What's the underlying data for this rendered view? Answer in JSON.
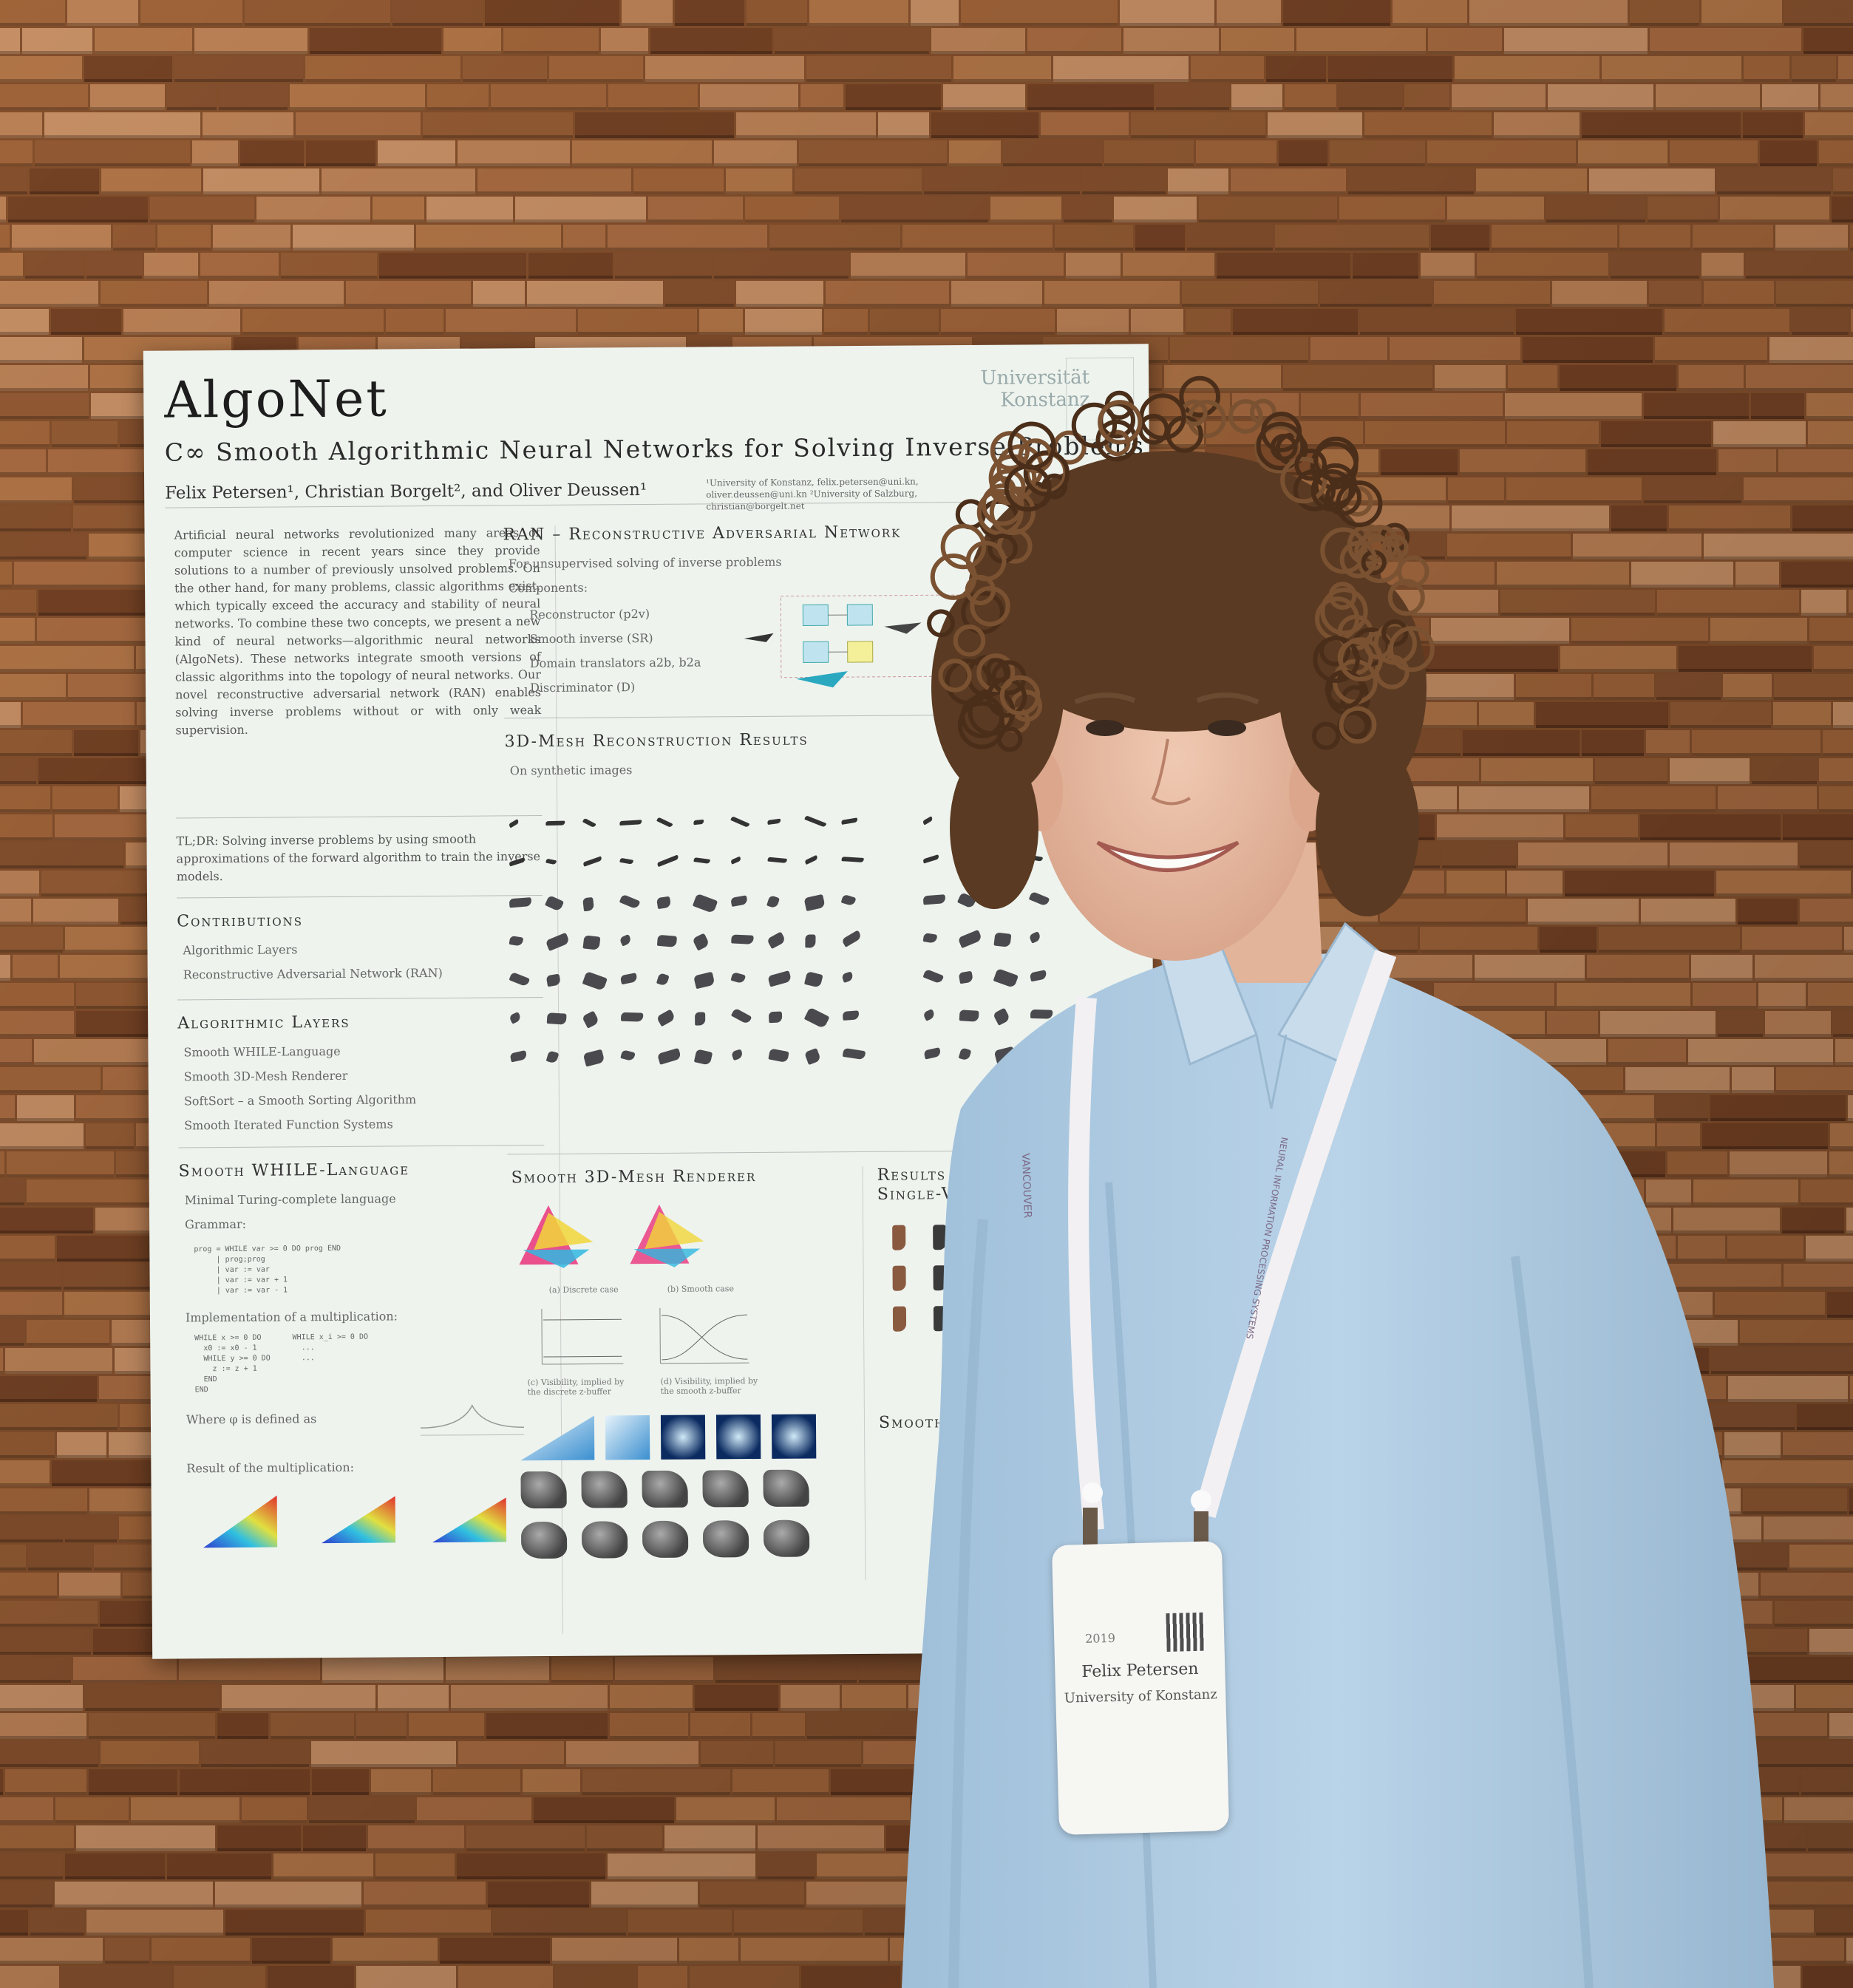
{
  "poster": {
    "title": "AlgoNet",
    "subtitle": "C∞ Smooth Algorithmic Neural Networks for Solving Inverse Problems",
    "authors": "Felix Petersen¹, Christian Borgelt², and Oliver Deussen¹",
    "affiliations": "¹University of Konstanz, felix.petersen@uni.kn, oliver.deussen@uni.kn ²University of Salzburg, christian@borgelt.net",
    "university_logo": "Universität Konstanz",
    "abstract": "Artificial neural networks revolutionized many areas of computer science in recent years since they provide solutions to a number of previously unsolved problems. On the other hand, for many problems, classic algorithms exist, which typically exceed the accuracy and stability of neural networks. To combine these two concepts, we present a new kind of neural networks—algorithmic neural networks (AlgoNets). These networks integrate smooth versions of classic algorithms into the topology of neural networks. Our novel reconstructive adversarial network (RAN) enables solving inverse problems without or with only weak supervision.",
    "tldr": "TL;DR: Solving inverse problems by using smooth approximations of the forward algorithm to train the inverse models.",
    "contributions": {
      "heading": "Contributions",
      "items": [
        "Algorithmic Layers",
        "Reconstructive Adversarial Network (RAN)"
      ]
    },
    "layers": {
      "heading": "Algorithmic Layers",
      "items": [
        "Smooth WHILE-Language",
        "Smooth 3D-Mesh Renderer",
        "SoftSort – a Smooth Sorting Algorithm",
        "Smooth Iterated Function Systems"
      ]
    },
    "while": {
      "heading": "Smooth WHILE-Language",
      "items": [
        "Minimal Turing-complete language",
        "Grammar:"
      ],
      "grammar": "prog = WHILE var >= 0 DO prog END\n     | prog;prog\n     | var := var\n     | var := var + 1\n     | var := var - 1",
      "impl_label": "Implementation of a multiplication:",
      "impl_code": "WHILE x >= 0 DO       WHILE x_i >= 0 DO\n  x0 := x0 - 1          ...\n  WHILE y >= 0 DO       ...\n    z := z + 1\n  END\nEND",
      "where_label": "Where φ is defined as",
      "result_label": "Result of the multiplication:"
    },
    "ran": {
      "heading": "RAN – Reconstructive Adversarial Network",
      "items": [
        "For unsupervised solving of inverse problems",
        "Components:"
      ],
      "sub_items": [
        "Reconstructor (p2v)",
        "Smooth inverse (SR)",
        "Domain translators a2b, b2a",
        "Discriminator (D)"
      ]
    },
    "mesh": {
      "heading": "3D-Mesh Reconstruction Results",
      "items": [
        "On synthetic images"
      ]
    },
    "renderer": {
      "heading": "Smooth 3D-Mesh Renderer",
      "cap_a": "(a) Discrete case",
      "cap_b": "(b) Smooth case",
      "cap_c": "(c) Visibility, implied by the discrete z-buffer",
      "cap_d": "(d) Visibility, implied by the smooth z-buffer"
    },
    "results": {
      "heading": "Results On Single-View"
    },
    "sorting": {
      "heading": "Smooth So"
    }
  },
  "badge": {
    "year": "2019",
    "name": "Felix Petersen",
    "org": "University of Konstanz"
  },
  "lanyard": {
    "left_text": "VANCOUVER",
    "right_text": "NEURAL INFORMATION PROCESSING SYSTEMS"
  },
  "colors": {
    "wall_light": "#b97a4a",
    "wall_dark": "#6e3f22",
    "poster_bg": "#eef3ee",
    "shirt": "#aecbe4",
    "hair": "#5a3a22",
    "skin": "#e9bfa6"
  }
}
